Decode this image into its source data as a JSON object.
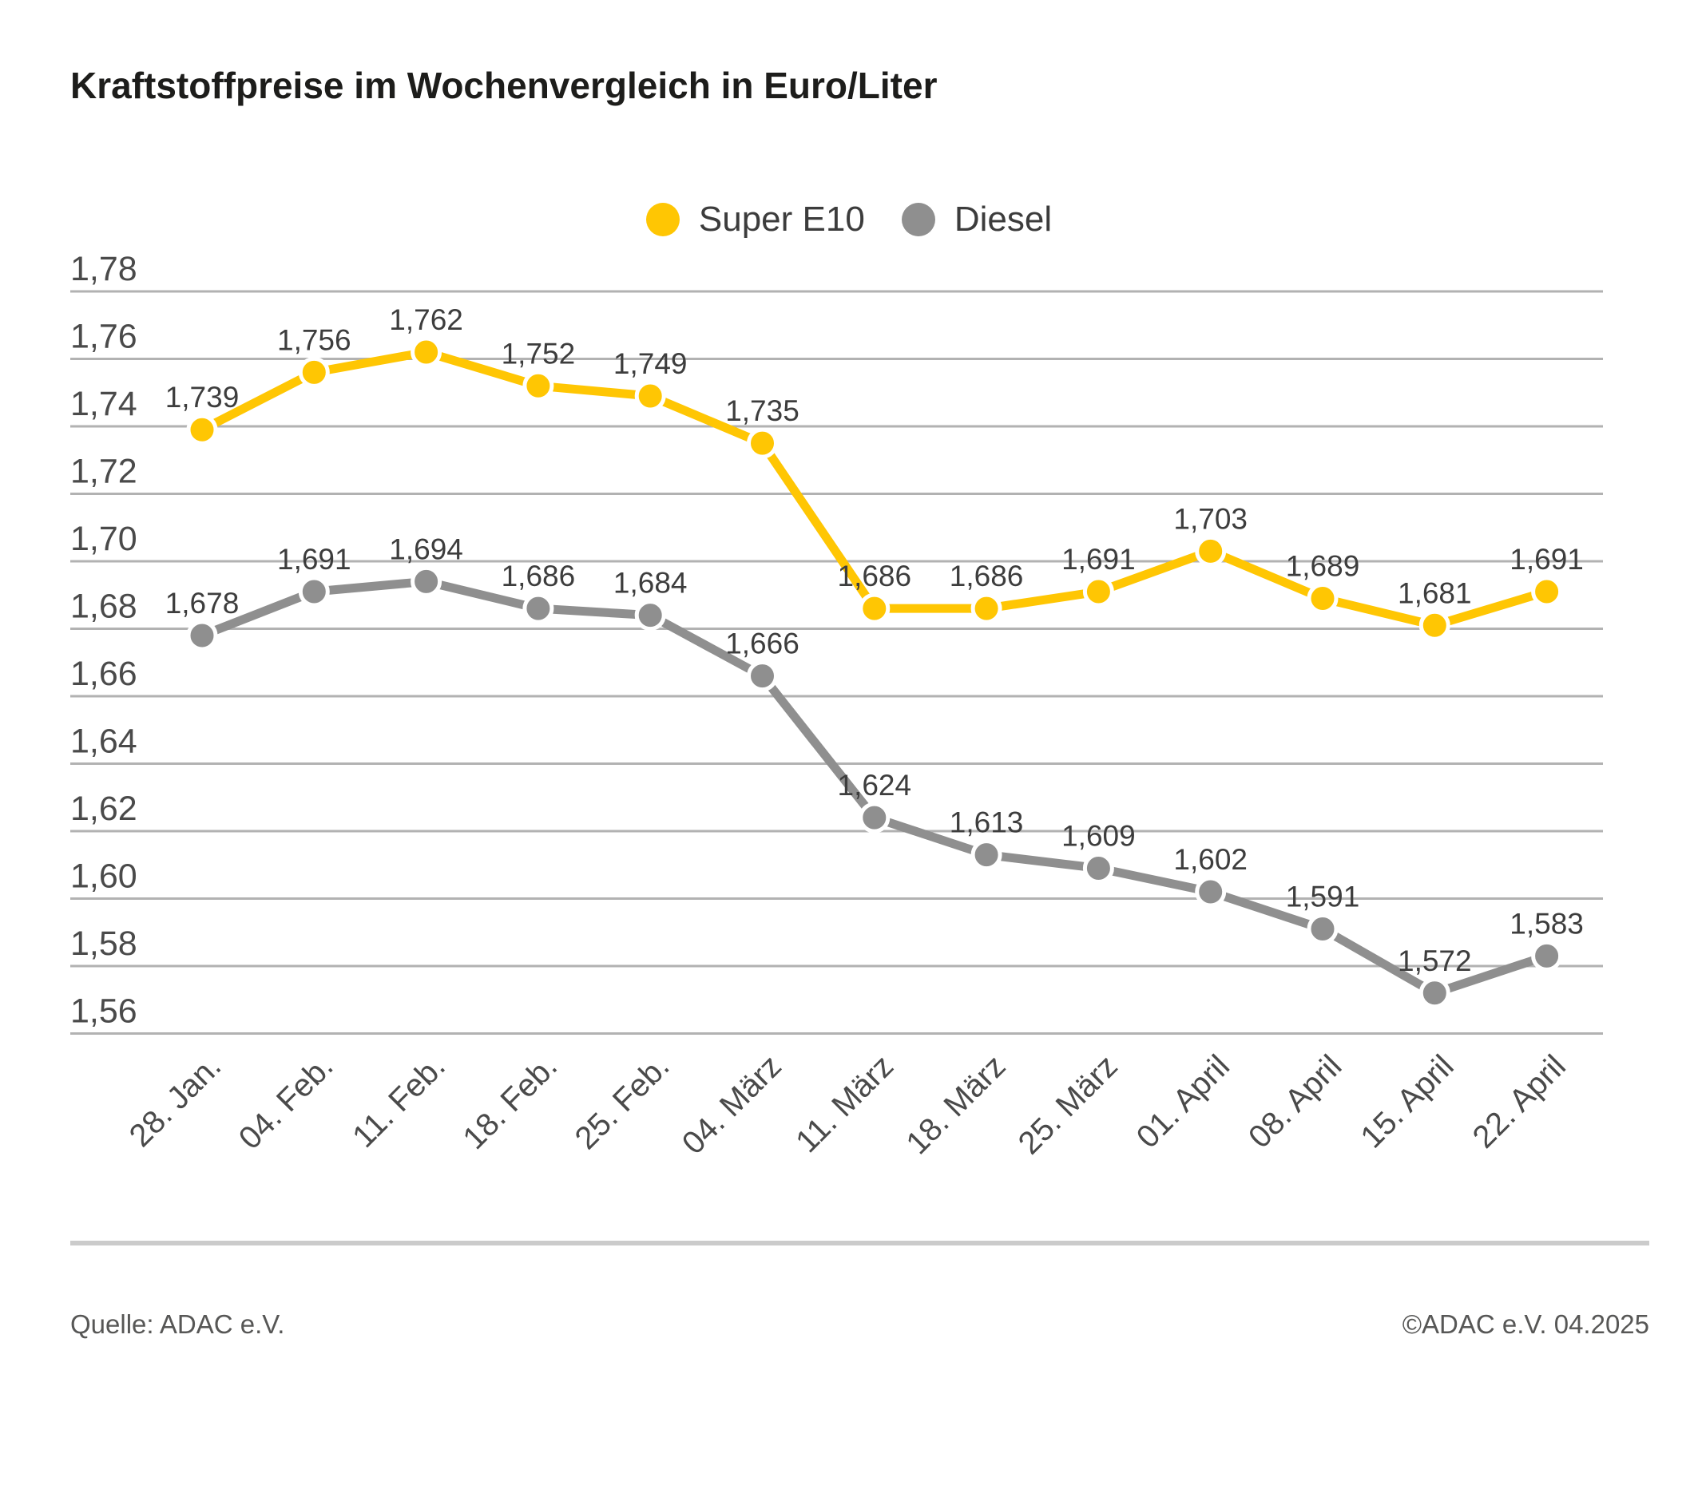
{
  "header": {
    "title": "Kraftstoffpreise im Wochenvergleich in Euro/Liter"
  },
  "legend": {
    "items": [
      {
        "label": "Super E10",
        "color": "#FFC603"
      },
      {
        "label": "Diesel",
        "color": "#8F8F8F"
      }
    ]
  },
  "chart_data": {
    "type": "line",
    "title": "Kraftstoffpreise im Wochenvergleich in Euro/Liter",
    "unit": "Euro/Liter",
    "grid": "horizontal-only",
    "legend_position": "top-center",
    "grid_color": "#B2B2B2",
    "tick_color": "#4A4A4A",
    "point_label_color": "#3D3D3D",
    "categories": [
      "28. Jan.",
      "04. Feb.",
      "11. Feb.",
      "18. Feb.",
      "25. Feb.",
      "04. März",
      "11. März",
      "18. März",
      "25. März",
      "01. April",
      "08. April",
      "15. April",
      "22. April"
    ],
    "series": [
      {
        "name": "Super E10",
        "color": "#FFC603",
        "values": [
          1.739,
          1.756,
          1.762,
          1.752,
          1.749,
          1.735,
          1.686,
          1.686,
          1.691,
          1.703,
          1.689,
          1.681,
          1.691
        ],
        "point_labels": [
          "1,739",
          "1,756",
          "1,762",
          "1,752",
          "1,749",
          "1,735",
          "1,686",
          "1,686",
          "1,691",
          "1,703",
          "1,689",
          "1,681",
          "1,691"
        ]
      },
      {
        "name": "Diesel",
        "color": "#8F8F8F",
        "values": [
          1.678,
          1.691,
          1.694,
          1.686,
          1.684,
          1.666,
          1.624,
          1.613,
          1.609,
          1.602,
          1.591,
          1.572,
          1.583
        ],
        "point_labels": [
          "1,678",
          "1,691",
          "1,694",
          "1,686",
          "1,684",
          "1,666",
          "1,624",
          "1,613",
          "1,609",
          "1,602",
          "1,591",
          "1,572",
          "1,583"
        ]
      }
    ],
    "ylim": [
      1.56,
      1.78
    ],
    "ytick_step": 0.02,
    "yticks": [
      "1,78",
      "1,76",
      "1,74",
      "1,72",
      "1,70",
      "1,68",
      "1,66",
      "1,64",
      "1,62",
      "1,60",
      "1,58",
      "1,56"
    ]
  },
  "footer": {
    "source": "Quelle: ADAC e.V.",
    "copyright": "©ADAC e.V. 04.2025"
  }
}
